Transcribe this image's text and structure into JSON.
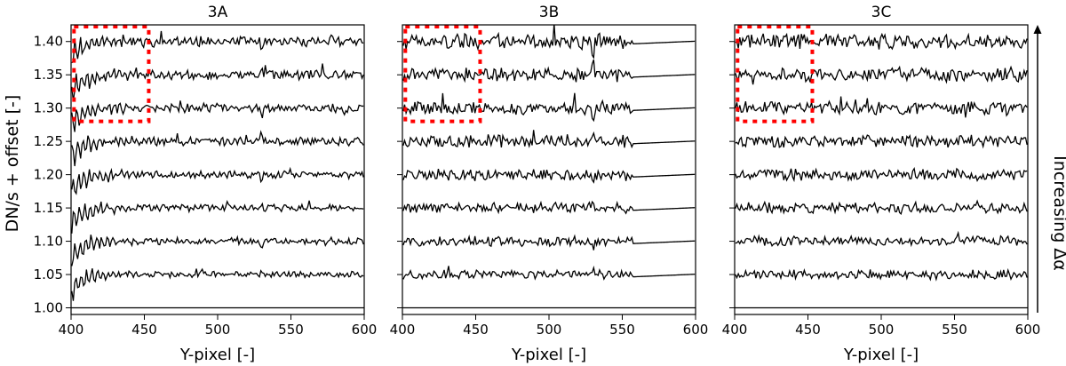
{
  "figure": {
    "ylabel": "DN/s + offset [-]",
    "side_label": "Increasing Δα"
  },
  "chart_data": [
    {
      "type": "line",
      "title": "3A",
      "xlabel": "Y-pixel [-]",
      "ylabel": "DN/s + offset [-]",
      "xlim": [
        400,
        600
      ],
      "ylim": [
        0.99,
        1.425
      ],
      "xticks": [
        400,
        450,
        500,
        550,
        600
      ],
      "yticks": [
        1.0,
        1.05,
        1.1,
        1.15,
        1.2,
        1.25,
        1.3,
        1.35,
        1.4
      ],
      "ytick_labels": [
        "1.00",
        "1.05",
        "1.10",
        "1.15",
        "1.20",
        "1.25",
        "1.30",
        "1.35",
        "1.40"
      ],
      "show_yticklabels": true,
      "series_offsets": [
        1.0,
        1.05,
        1.1,
        1.15,
        1.2,
        1.25,
        1.3,
        1.35,
        1.4
      ],
      "noise_amplitude": 0.006,
      "edge_ringing": true,
      "flat_after": null,
      "highlight_box": {
        "x": [
          402,
          453
        ],
        "y": [
          1.28,
          1.425
        ],
        "color": "#ff0000"
      }
    },
    {
      "type": "line",
      "title": "3B",
      "xlabel": "Y-pixel [-]",
      "ylabel": "",
      "xlim": [
        400,
        600
      ],
      "ylim": [
        0.99,
        1.425
      ],
      "xticks": [
        400,
        450,
        500,
        550,
        600
      ],
      "yticks": [
        1.0,
        1.05,
        1.1,
        1.15,
        1.2,
        1.25,
        1.3,
        1.35,
        1.4
      ],
      "ytick_labels": [],
      "show_yticklabels": false,
      "series_offsets": [
        1.0,
        1.05,
        1.1,
        1.15,
        1.2,
        1.25,
        1.3,
        1.35,
        1.4
      ],
      "noise_amplitude": 0.009,
      "edge_ringing": false,
      "flat_after": 557,
      "highlight_box": {
        "x": [
          402,
          453
        ],
        "y": [
          1.28,
          1.425
        ],
        "color": "#ff0000"
      }
    },
    {
      "type": "line",
      "title": "3C",
      "xlabel": "Y-pixel [-]",
      "ylabel": "",
      "xlim": [
        400,
        600
      ],
      "ylim": [
        0.99,
        1.425
      ],
      "xticks": [
        400,
        450,
        500,
        550,
        600
      ],
      "yticks": [
        1.0,
        1.05,
        1.1,
        1.15,
        1.2,
        1.25,
        1.3,
        1.35,
        1.4
      ],
      "ytick_labels": [],
      "show_yticklabels": false,
      "series_offsets": [
        1.0,
        1.05,
        1.1,
        1.15,
        1.2,
        1.25,
        1.3,
        1.35,
        1.4
      ],
      "noise_amplitude": 0.009,
      "edge_ringing": false,
      "flat_after": null,
      "highlight_box": {
        "x": [
          402,
          453
        ],
        "y": [
          1.28,
          1.425
        ],
        "color": "#ff0000"
      }
    }
  ]
}
